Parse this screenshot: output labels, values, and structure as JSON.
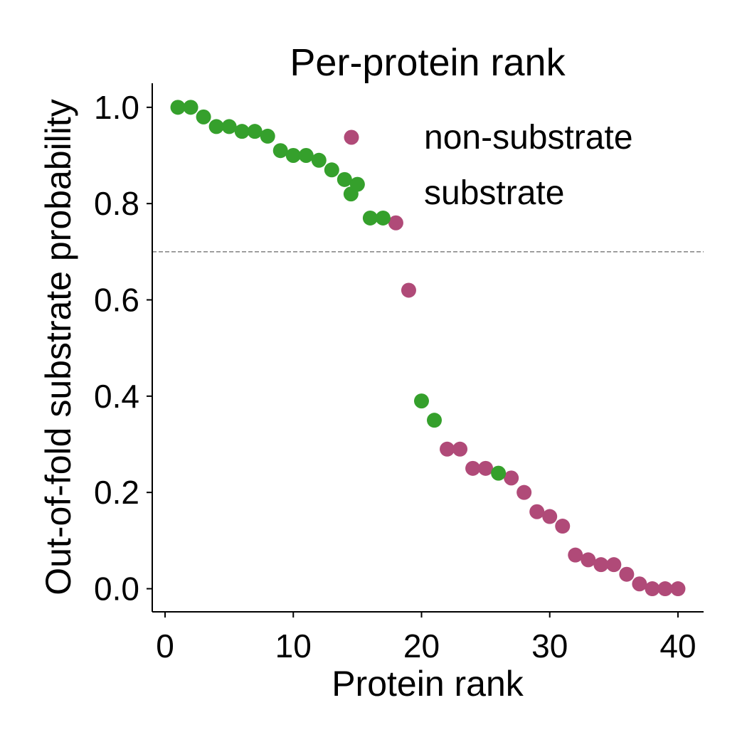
{
  "chart_data": {
    "type": "scatter",
    "title": "Per-protein rank",
    "xlabel": "Protein rank",
    "ylabel": "Out-of-fold substrate probability",
    "xlim": [
      -1,
      42
    ],
    "ylim": [
      -0.048,
      1.05
    ],
    "x_ticks": [
      0,
      10,
      20,
      30,
      40
    ],
    "x_tick_labels": [
      "0",
      "10",
      "20",
      "30",
      "40"
    ],
    "y_ticks": [
      0.0,
      0.2,
      0.4,
      0.6,
      0.8,
      1.0
    ],
    "y_tick_labels": [
      "0.0",
      "0.2",
      "0.4",
      "0.6",
      "0.8",
      "1.0"
    ],
    "threshold": 0.7,
    "grid": false,
    "legend_position": "top-right",
    "series": [
      {
        "name": "non-substrate",
        "color": "#b04a78",
        "points": [
          [
            18,
            0.76
          ],
          [
            19,
            0.62
          ],
          [
            22,
            0.29
          ],
          [
            23,
            0.29
          ],
          [
            24,
            0.25
          ],
          [
            25,
            0.25
          ],
          [
            27,
            0.23
          ],
          [
            28,
            0.2
          ],
          [
            29,
            0.16
          ],
          [
            30,
            0.15
          ],
          [
            31,
            0.13
          ],
          [
            32,
            0.07
          ],
          [
            33,
            0.06
          ],
          [
            34,
            0.05
          ],
          [
            35,
            0.05
          ],
          [
            36,
            0.03
          ],
          [
            37,
            0.01
          ],
          [
            38,
            0.0
          ],
          [
            39,
            0.0
          ],
          [
            40,
            0.0
          ]
        ]
      },
      {
        "name": "substrate",
        "color": "#35a02c",
        "points": [
          [
            1,
            1.0
          ],
          [
            2,
            1.0
          ],
          [
            3,
            0.98
          ],
          [
            4,
            0.96
          ],
          [
            5,
            0.96
          ],
          [
            6,
            0.95
          ],
          [
            7,
            0.95
          ],
          [
            8,
            0.94
          ],
          [
            9,
            0.91
          ],
          [
            10,
            0.9
          ],
          [
            11,
            0.9
          ],
          [
            12,
            0.89
          ],
          [
            13,
            0.87
          ],
          [
            14,
            0.85
          ],
          [
            14.5,
            0.82
          ],
          [
            15,
            0.84
          ],
          [
            16,
            0.77
          ],
          [
            17,
            0.77
          ],
          [
            20,
            0.39
          ],
          [
            21,
            0.35
          ],
          [
            26,
            0.24
          ]
        ]
      }
    ]
  }
}
